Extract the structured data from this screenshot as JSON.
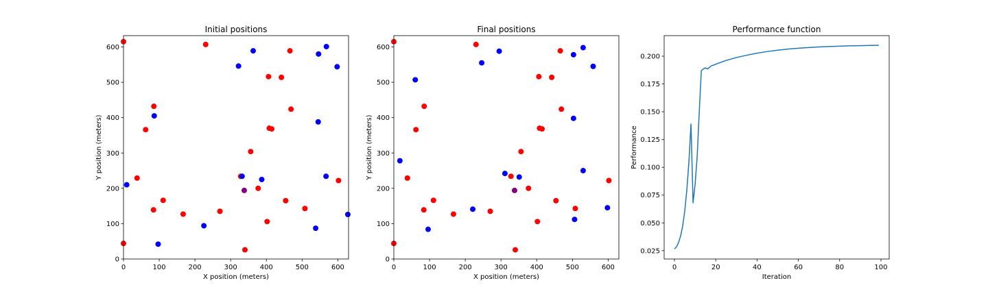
{
  "chart_data": [
    {
      "type": "scatter",
      "title": "Initial positions",
      "xlabel": "X position (meters)",
      "ylabel": "Y position (meters)",
      "xlim": [
        0,
        630
      ],
      "ylim": [
        0,
        632
      ],
      "xticks": [
        0,
        100,
        200,
        300,
        400,
        500,
        600
      ],
      "yticks": [
        0,
        100,
        200,
        300,
        400,
        500,
        600
      ],
      "grid": false,
      "colors": {
        "red": "#ff0000",
        "blue": "#0000ff",
        "purple": "#800080"
      },
      "points": [
        {
          "x": 0,
          "y": 615,
          "color": "red"
        },
        {
          "x": 230,
          "y": 607,
          "color": "red"
        },
        {
          "x": 466,
          "y": 589,
          "color": "red"
        },
        {
          "x": 406,
          "y": 516,
          "color": "red"
        },
        {
          "x": 442,
          "y": 514,
          "color": "red"
        },
        {
          "x": 85,
          "y": 432,
          "color": "red"
        },
        {
          "x": 469,
          "y": 424,
          "color": "red"
        },
        {
          "x": 62,
          "y": 366,
          "color": "red"
        },
        {
          "x": 408,
          "y": 370,
          "color": "red"
        },
        {
          "x": 415,
          "y": 368,
          "color": "red"
        },
        {
          "x": 356,
          "y": 304,
          "color": "red"
        },
        {
          "x": 328,
          "y": 234,
          "color": "red"
        },
        {
          "x": 38,
          "y": 229,
          "color": "red"
        },
        {
          "x": 602,
          "y": 222,
          "color": "red"
        },
        {
          "x": 377,
          "y": 200,
          "color": "red"
        },
        {
          "x": 111,
          "y": 166,
          "color": "red"
        },
        {
          "x": 454,
          "y": 165,
          "color": "red"
        },
        {
          "x": 84,
          "y": 139,
          "color": "red"
        },
        {
          "x": 508,
          "y": 143,
          "color": "red"
        },
        {
          "x": 270,
          "y": 135,
          "color": "red"
        },
        {
          "x": 167,
          "y": 127,
          "color": "red"
        },
        {
          "x": 402,
          "y": 106,
          "color": "red"
        },
        {
          "x": 0,
          "y": 44,
          "color": "red"
        },
        {
          "x": 340,
          "y": 26,
          "color": "red"
        },
        {
          "x": 568,
          "y": 601,
          "color": "blue"
        },
        {
          "x": 363,
          "y": 589,
          "color": "blue"
        },
        {
          "x": 546,
          "y": 580,
          "color": "blue"
        },
        {
          "x": 322,
          "y": 546,
          "color": "blue"
        },
        {
          "x": 598,
          "y": 544,
          "color": "blue"
        },
        {
          "x": 86,
          "y": 405,
          "color": "blue"
        },
        {
          "x": 545,
          "y": 388,
          "color": "blue"
        },
        {
          "x": 332,
          "y": 234,
          "color": "blue"
        },
        {
          "x": 567,
          "y": 234,
          "color": "blue"
        },
        {
          "x": 387,
          "y": 225,
          "color": "blue"
        },
        {
          "x": 9,
          "y": 210,
          "color": "blue"
        },
        {
          "x": 628,
          "y": 126,
          "color": "blue"
        },
        {
          "x": 225,
          "y": 94,
          "color": "blue"
        },
        {
          "x": 538,
          "y": 87,
          "color": "blue"
        },
        {
          "x": 97,
          "y": 42,
          "color": "blue"
        },
        {
          "x": 338,
          "y": 194,
          "color": "purple"
        }
      ]
    },
    {
      "type": "scatter",
      "title": "Final positions",
      "xlabel": "X position (meters)",
      "ylabel": "Y position (meters)",
      "xlim": [
        0,
        630
      ],
      "ylim": [
        0,
        632
      ],
      "xticks": [
        0,
        100,
        200,
        300,
        400,
        500,
        600
      ],
      "yticks": [
        0,
        100,
        200,
        300,
        400,
        500,
        600
      ],
      "grid": false,
      "colors": {
        "red": "#ff0000",
        "blue": "#0000ff",
        "purple": "#800080"
      },
      "points": [
        {
          "x": 0,
          "y": 615,
          "color": "red"
        },
        {
          "x": 230,
          "y": 607,
          "color": "red"
        },
        {
          "x": 466,
          "y": 589,
          "color": "red"
        },
        {
          "x": 406,
          "y": 516,
          "color": "red"
        },
        {
          "x": 442,
          "y": 514,
          "color": "red"
        },
        {
          "x": 85,
          "y": 432,
          "color": "red"
        },
        {
          "x": 469,
          "y": 424,
          "color": "red"
        },
        {
          "x": 62,
          "y": 366,
          "color": "red"
        },
        {
          "x": 408,
          "y": 370,
          "color": "red"
        },
        {
          "x": 415,
          "y": 368,
          "color": "red"
        },
        {
          "x": 356,
          "y": 304,
          "color": "red"
        },
        {
          "x": 328,
          "y": 234,
          "color": "red"
        },
        {
          "x": 38,
          "y": 229,
          "color": "red"
        },
        {
          "x": 602,
          "y": 222,
          "color": "red"
        },
        {
          "x": 377,
          "y": 200,
          "color": "red"
        },
        {
          "x": 111,
          "y": 166,
          "color": "red"
        },
        {
          "x": 454,
          "y": 165,
          "color": "red"
        },
        {
          "x": 84,
          "y": 139,
          "color": "red"
        },
        {
          "x": 508,
          "y": 143,
          "color": "red"
        },
        {
          "x": 270,
          "y": 135,
          "color": "red"
        },
        {
          "x": 167,
          "y": 127,
          "color": "red"
        },
        {
          "x": 402,
          "y": 106,
          "color": "red"
        },
        {
          "x": 0,
          "y": 44,
          "color": "red"
        },
        {
          "x": 340,
          "y": 26,
          "color": "red"
        },
        {
          "x": 530,
          "y": 598,
          "color": "blue"
        },
        {
          "x": 295,
          "y": 588,
          "color": "blue"
        },
        {
          "x": 503,
          "y": 578,
          "color": "blue"
        },
        {
          "x": 246,
          "y": 555,
          "color": "blue"
        },
        {
          "x": 558,
          "y": 545,
          "color": "blue"
        },
        {
          "x": 60,
          "y": 507,
          "color": "blue"
        },
        {
          "x": 503,
          "y": 398,
          "color": "blue"
        },
        {
          "x": 17,
          "y": 278,
          "color": "blue"
        },
        {
          "x": 530,
          "y": 250,
          "color": "blue"
        },
        {
          "x": 311,
          "y": 242,
          "color": "blue"
        },
        {
          "x": 351,
          "y": 232,
          "color": "blue"
        },
        {
          "x": 221,
          "y": 141,
          "color": "blue"
        },
        {
          "x": 598,
          "y": 145,
          "color": "blue"
        },
        {
          "x": 506,
          "y": 112,
          "color": "blue"
        },
        {
          "x": 96,
          "y": 84,
          "color": "blue"
        },
        {
          "x": 338,
          "y": 194,
          "color": "purple"
        }
      ]
    },
    {
      "type": "line",
      "title": "Performance function",
      "xlabel": "Iteration",
      "ylabel": "Performance",
      "xlim": [
        -5,
        104
      ],
      "ylim": [
        0.0175,
        0.2185
      ],
      "xticks": [
        0,
        20,
        40,
        60,
        80,
        100
      ],
      "yticks": [
        0.025,
        0.05,
        0.075,
        0.1,
        0.125,
        0.15,
        0.175,
        0.2
      ],
      "ytick_labels": [
        "0.025",
        "0.050",
        "0.075",
        "0.100",
        "0.125",
        "0.150",
        "0.175",
        "0.200"
      ],
      "grid": false,
      "color": "#1f77b4",
      "series": [
        {
          "x": [
            0,
            1,
            2,
            3,
            4,
            5,
            6,
            7,
            8,
            9,
            10,
            11,
            12,
            13,
            14,
            15,
            16,
            17,
            18,
            19,
            20,
            25,
            30,
            35,
            40,
            45,
            50,
            55,
            60,
            65,
            70,
            75,
            80,
            85,
            90,
            95,
            99
          ],
          "y": [
            0.0265,
            0.0285,
            0.0325,
            0.0385,
            0.0475,
            0.061,
            0.08,
            0.105,
            0.139,
            0.068,
            0.085,
            0.11,
            0.15,
            0.187,
            0.1885,
            0.1895,
            0.1885,
            0.19,
            0.1915,
            0.192,
            0.1928,
            0.1962,
            0.1988,
            0.2009,
            0.2027,
            0.2042,
            0.2054,
            0.2064,
            0.2072,
            0.2078,
            0.2083,
            0.2087,
            0.209,
            0.2093,
            0.2095,
            0.2097,
            0.2098
          ]
        }
      ]
    }
  ]
}
